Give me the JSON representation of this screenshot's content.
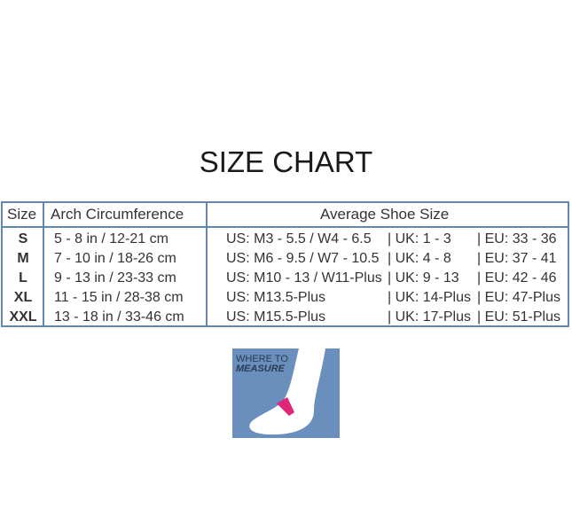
{
  "title": "SIZE CHART",
  "headers": {
    "size": "Size",
    "arch": "Arch Circumference",
    "shoe": "Average Shoe Size"
  },
  "rows": [
    {
      "size": "S",
      "arch": "5 - 8 in / 12-21 cm",
      "us": "US: M3 - 5.5 / W4 - 6.5",
      "uk": "| UK: 1 - 3",
      "eu": "| EU: 33 - 36"
    },
    {
      "size": "M",
      "arch": "7 - 10 in / 18-26 cm",
      "us": "US: M6 - 9.5 / W7 - 10.5",
      "uk": "| UK: 4 - 8",
      "eu": "| EU: 37 - 41"
    },
    {
      "size": "L",
      "arch": "9 - 13 in / 23-33 cm",
      "us": "US: M10 - 13 / W11-Plus",
      "uk": "| UK: 9 - 13",
      "eu": "| EU: 42 - 46"
    },
    {
      "size": "XL",
      "arch": "11 - 15 in / 28-38 cm",
      "us": "US: M13.5-Plus",
      "uk": "| UK: 14-Plus",
      "eu": "| EU: 47-Plus"
    },
    {
      "size": "XXL",
      "arch": "13 - 18 in / 33-46 cm",
      "us": "US: M15.5-Plus",
      "uk": "| UK: 17-Plus",
      "eu": "| EU: 51-Plus"
    }
  ],
  "measure_image": {
    "line1": "WHERE TO",
    "line2": "MEASURE"
  },
  "colors": {
    "border": "#6287b3",
    "image_bg": "#6a8fbd",
    "accent": "#e0267a"
  }
}
